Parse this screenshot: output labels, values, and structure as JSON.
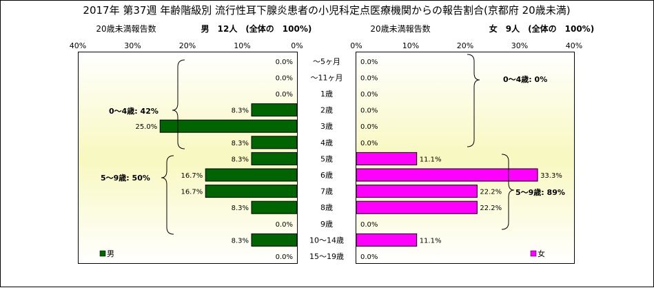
{
  "title": "2017年 第37週 年齢階級別 流行性耳下腺炎患者の小児科定点医療機関からの報告割合(京都府 20歳未満)",
  "left_panel": {
    "header_reports": "20歳未満報告数",
    "header_total": "男　12人　(全体の　100%)",
    "legend": "男",
    "group_labels": [
      "0～4歳: 42%",
      "5～9歳: 50%"
    ],
    "axis_ticks": [
      "40%",
      "30%",
      "20%",
      "10%",
      "0%"
    ]
  },
  "right_panel": {
    "header_reports": "20歳未満報告数",
    "header_total": "女　9人　(全体の　100%)",
    "legend": "女",
    "group_labels": [
      "0～4歳: 0%",
      "5～9歳: 89%"
    ],
    "axis_ticks": [
      "0%",
      "10%",
      "20%",
      "30%",
      "40%"
    ]
  },
  "chart_data": [
    {
      "type": "bar",
      "orientation": "horizontal",
      "series": [
        {
          "name": "男",
          "values": [
            0.0,
            0.0,
            0.0,
            8.3,
            25.0,
            8.3,
            8.3,
            16.7,
            16.7,
            8.3,
            0.0,
            8.3,
            0.0
          ]
        }
      ],
      "categories": [
        "～5ヶ月",
        "～11ヶ月",
        "1歳",
        "2歳",
        "3歳",
        "4歳",
        "5歳",
        "6歳",
        "7歳",
        "8歳",
        "9歳",
        "10～14歳",
        "15～19歳"
      ],
      "value_labels": [
        "0.0%",
        "0.0%",
        "0.0%",
        "8.3%",
        "25.0%",
        "8.3%",
        "8.3%",
        "16.7%",
        "16.7%",
        "8.3%",
        "0.0%",
        "8.3%",
        "0.0%"
      ],
      "xlim": [
        0,
        40
      ],
      "direction": "right-to-left",
      "color": "#006400"
    },
    {
      "type": "bar",
      "orientation": "horizontal",
      "series": [
        {
          "name": "女",
          "values": [
            0.0,
            0.0,
            0.0,
            0.0,
            0.0,
            0.0,
            11.1,
            33.3,
            22.2,
            22.2,
            0.0,
            11.1,
            0.0
          ]
        }
      ],
      "categories": [
        "～5ヶ月",
        "～11ヶ月",
        "1歳",
        "2歳",
        "3歳",
        "4歳",
        "5歳",
        "6歳",
        "7歳",
        "8歳",
        "9歳",
        "10～14歳",
        "15～19歳"
      ],
      "value_labels": [
        "0.0%",
        "0.0%",
        "0.0%",
        "0.0%",
        "0.0%",
        "0.0%",
        "11.1%",
        "33.3%",
        "22.2%",
        "22.2%",
        "0.0%",
        "11.1%",
        "0.0%"
      ],
      "xlim": [
        0,
        40
      ],
      "direction": "left-to-right",
      "color": "#ff00ff"
    }
  ]
}
